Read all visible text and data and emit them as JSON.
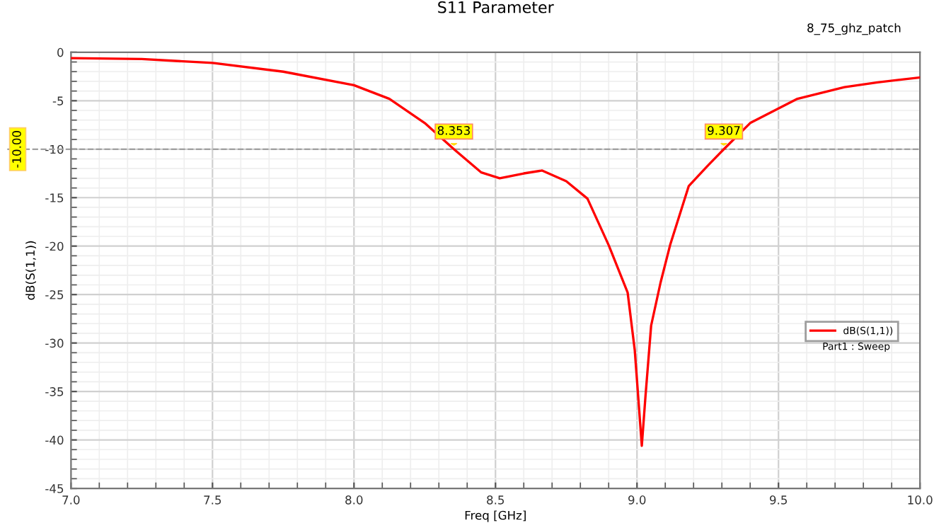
{
  "chart_data": {
    "type": "line",
    "title": "S11 Parameter",
    "xlabel": "Freq [GHz]",
    "ylabel": "dB(S(1,1))",
    "x": [
      7.0,
      7.25,
      7.5,
      7.75,
      8.0,
      8.125,
      8.25,
      8.353,
      8.45,
      8.515,
      8.6,
      8.665,
      8.75,
      8.825,
      8.9,
      8.967,
      8.992,
      9.008,
      9.017,
      9.03,
      9.05,
      9.083,
      9.117,
      9.183,
      9.25,
      9.307,
      9.4,
      9.567,
      9.733,
      9.85,
      10.0
    ],
    "series": [
      {
        "name": "dB(S(1,1))",
        "color": "#ff0000",
        "values": [
          -0.6,
          -0.7,
          -1.1,
          -2.0,
          -3.4,
          -4.8,
          -7.3,
          -10.0,
          -12.4,
          -13.0,
          -12.5,
          -12.2,
          -13.3,
          -15.1,
          -19.9,
          -24.8,
          -30.7,
          -37.0,
          -40.6,
          -35.5,
          -28.2,
          -23.8,
          -19.9,
          -13.8,
          -11.7,
          -10.0,
          -7.3,
          -4.8,
          -3.6,
          -3.1,
          -2.6
        ]
      }
    ],
    "xlim": [
      7.0,
      10.0
    ],
    "ylim": [
      -45,
      0
    ],
    "xticks": [
      {
        "value": 7.0,
        "label": "7.0"
      },
      {
        "value": 7.5,
        "label": "7.5"
      },
      {
        "value": 8.0,
        "label": "8.0"
      },
      {
        "value": 8.5,
        "label": "8.5"
      },
      {
        "value": 9.0,
        "label": "9.0"
      },
      {
        "value": 9.5,
        "label": "9.5"
      },
      {
        "value": 10.0,
        "label": "10.0"
      }
    ],
    "yticks": [
      0,
      -5,
      -10,
      -15,
      -20,
      -25,
      -30,
      -35,
      -40,
      -45
    ],
    "ref_lines": [
      {
        "axis": "y",
        "value": -10,
        "label": "-10.00",
        "color": "#a0a0a0",
        "line_style": "dashed"
      }
    ],
    "annotations": [
      {
        "text": "8.353",
        "x": 8.353,
        "y": -10
      },
      {
        "text": "9.307",
        "x": 9.307,
        "y": -10
      },
      "8_75_ghz_patch",
      "Part1 : Sweep"
    ],
    "grid": true,
    "legend": "right",
    "marker": "none",
    "line_style": "solid"
  }
}
